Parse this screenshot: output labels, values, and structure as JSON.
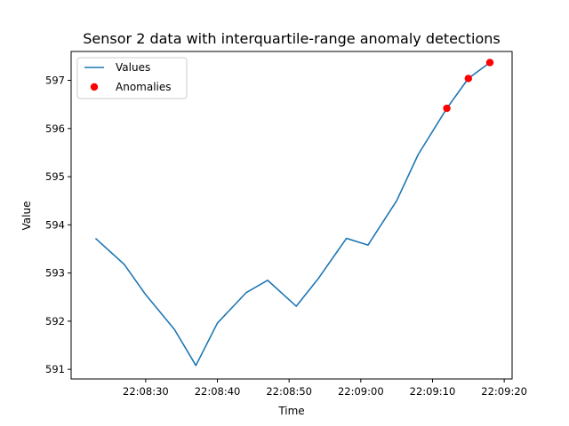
{
  "chart_data": {
    "type": "line",
    "title": "Sensor 2 data with interquartile-range anomaly detections",
    "xlabel": "Time",
    "ylabel": "Value",
    "x_tick_labels": [
      "22:08:30",
      "22:08:40",
      "22:08:50",
      "22:09:00",
      "22:09:10",
      "22:09:20"
    ],
    "x_tick_times": [
      "22:08:30",
      "22:08:40",
      "22:08:50",
      "22:09:00",
      "22:09:10",
      "22:09:20"
    ],
    "xlim": [
      "22:08:19.6",
      "22:09:21.1"
    ],
    "y_ticks": [
      591,
      592,
      593,
      594,
      595,
      596,
      597
    ],
    "ylim": [
      590.8,
      597.6
    ],
    "grid": false,
    "legend_position": "top-left",
    "series": [
      {
        "name": "Values",
        "color": "#1f77b4",
        "style": "line",
        "x": [
          "22:08:23",
          "22:08:27",
          "22:08:30",
          "22:08:34",
          "22:08:37",
          "22:08:40",
          "22:08:44",
          "22:08:47",
          "22:08:51",
          "22:08:54",
          "22:08:58",
          "22:09:01",
          "22:09:05",
          "22:09:08",
          "22:09:12",
          "22:09:15",
          "22:09:18"
        ],
        "values": [
          593.72,
          593.18,
          592.55,
          591.83,
          591.08,
          591.96,
          592.59,
          592.85,
          592.31,
          592.87,
          593.72,
          593.58,
          594.5,
          595.46,
          596.42,
          597.04,
          597.37
        ]
      },
      {
        "name": "Anomalies",
        "color": "#ff0000",
        "style": "scatter",
        "x": [
          "22:09:12",
          "22:09:15",
          "22:09:18"
        ],
        "values": [
          596.42,
          597.04,
          597.37
        ]
      }
    ]
  }
}
